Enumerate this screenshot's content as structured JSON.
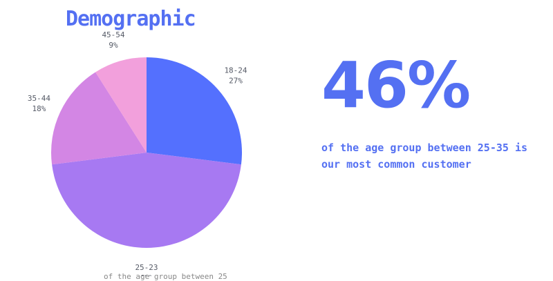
{
  "chart_data": {
    "type": "pie",
    "title": "Demographic",
    "slices": [
      {
        "category": "18-24",
        "value": 27,
        "value_label": "27%",
        "color": "#5470fe"
      },
      {
        "category": "25-23",
        "value": 46,
        "value_label": "46%",
        "color": "#a779f2"
      },
      {
        "category": "35-44",
        "value": 18,
        "value_label": "18%",
        "color": "#d386e4"
      },
      {
        "category": "45-54",
        "value": 9,
        "value_label": "9%",
        "color": "#f2a0dc"
      }
    ]
  },
  "stat": {
    "value": "46%",
    "caption": "of the age group between 25-35 is our most common customer"
  },
  "footer": {
    "text": "of the age group between 25"
  }
}
